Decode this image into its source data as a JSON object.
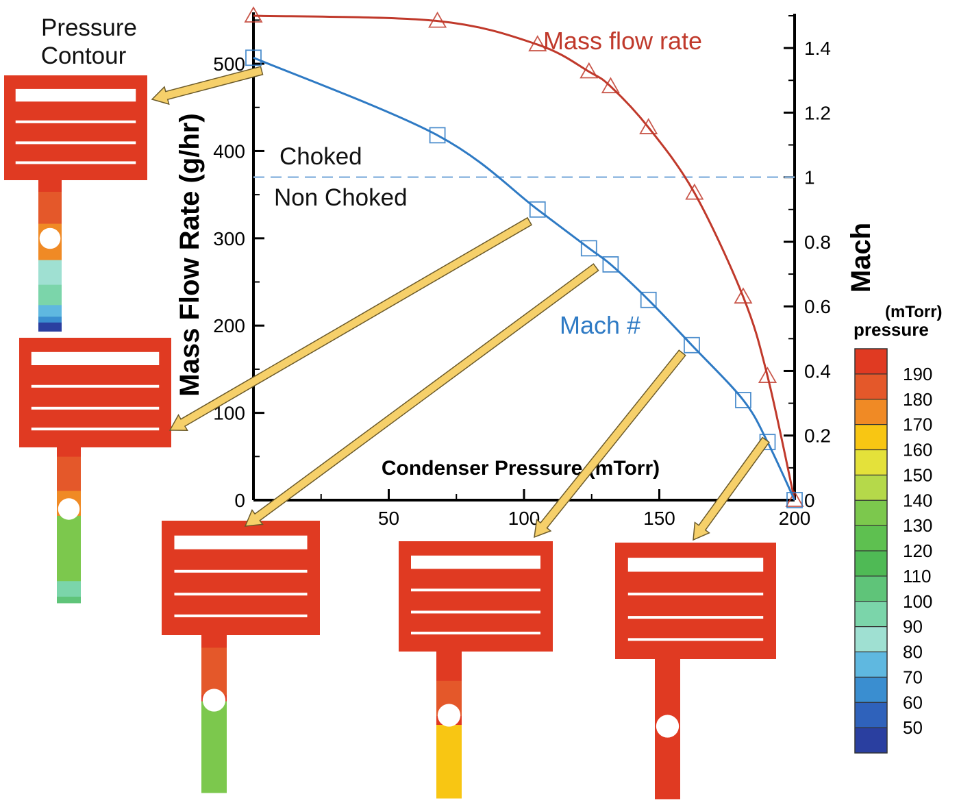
{
  "chart_data": {
    "type": "line",
    "xlabel": "Condenser Pressure (mTorr)",
    "ylabel": "Mass Flow Rate (g/hr)",
    "y2label": "Mach",
    "xlim": [
      0,
      200
    ],
    "ylim": [
      0,
      555
    ],
    "y2lim": [
      0,
      1.5
    ],
    "xticks": [
      50,
      100,
      150,
      200
    ],
    "yticks": [
      0,
      100,
      200,
      300,
      400,
      500
    ],
    "y2ticks": [
      "0",
      "0.2",
      "0.4",
      "0.6",
      "0.8",
      "1",
      "1.2",
      "1.4"
    ],
    "grid": false,
    "series": [
      {
        "name": "Mass flow rate",
        "axis": "left",
        "marker": "triangle",
        "color": "#c0392b",
        "x": [
          0,
          68,
          105,
          124,
          132,
          146,
          163,
          181,
          190,
          200
        ],
        "y": [
          555,
          549,
          522,
          491,
          474,
          427,
          352,
          233,
          142,
          0
        ]
      },
      {
        "name": "Mach #",
        "axis": "right",
        "marker": "square",
        "color": "#2e7ac4",
        "x": [
          0,
          68,
          105,
          124,
          132,
          146,
          162,
          181,
          190,
          200
        ],
        "y": [
          1.37,
          1.13,
          0.9,
          0.78,
          0.73,
          0.62,
          0.48,
          0.31,
          0.18,
          0
        ]
      }
    ],
    "reference_line": {
      "axis": "right",
      "y": 1,
      "color": "#8fb8e0"
    },
    "region_labels": [
      "Choked",
      "Non Choked"
    ]
  },
  "contour_panel": {
    "title_line1": "Pressure",
    "title_line2": "Contour"
  },
  "colorbar": {
    "unit": "(mTorr)",
    "label": "pressure",
    "levels": [
      "190",
      "180",
      "170",
      "160",
      "150",
      "140",
      "130",
      "120",
      "110",
      "100",
      "90",
      "80",
      "70",
      "60",
      "50"
    ],
    "colors": [
      "#e03a22",
      "#e4582a",
      "#f08a25",
      "#f8c613",
      "#e4e13a",
      "#b5d94a",
      "#7cc84d",
      "#5ec050",
      "#4fba55",
      "#5fc479",
      "#7bd5aa",
      "#9fe0d2",
      "#5fb8e0",
      "#3a8ed0",
      "#2f62bb",
      "#2a3fa0"
    ]
  },
  "contours": [
    {
      "stem": [
        [
          "#e03a22",
          0.08
        ],
        [
          "#e4582a",
          0.22
        ],
        [
          "#f08a25",
          0.25
        ],
        [
          "#9fe0d2",
          0.17
        ],
        [
          "#7bd5aa",
          0.14
        ],
        [
          "#5fb8e0",
          0.08
        ],
        [
          "#3a8ed0",
          0.04
        ],
        [
          "#2a3fa0",
          0.06
        ]
      ]
    },
    {
      "stem": [
        [
          "#e03a22",
          0.06
        ],
        [
          "#e4582a",
          0.22
        ],
        [
          "#f08a25",
          0.16
        ],
        [
          "#7cc84d",
          0.42
        ],
        [
          "#7bd5aa",
          0.1
        ],
        [
          "#5fc479",
          0.04
        ]
      ]
    },
    {
      "stem": [
        [
          "#e03a22",
          0.08
        ],
        [
          "#e4582a",
          0.3
        ],
        [
          "#e03a22",
          0.04
        ],
        [
          "#7cc84d",
          0.58
        ]
      ]
    },
    {
      "stem": [
        [
          "#e03a22",
          0.2
        ],
        [
          "#e4582a",
          0.24
        ],
        [
          "#e03a22",
          0.06
        ],
        [
          "#f8c613",
          0.5
        ]
      ]
    },
    {
      "stem": [
        [
          "#e03a22",
          1.0
        ]
      ]
    }
  ],
  "colors": {
    "arrow_fill": "#f6d06a",
    "arrow_stroke": "#6b5a2a",
    "contour_box": "#e03a22"
  }
}
